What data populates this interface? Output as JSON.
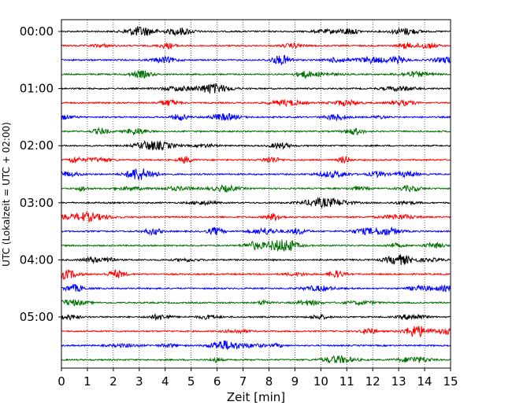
{
  "chart_data": {
    "type": "line",
    "title": "",
    "xlabel": "Zeit  [min]",
    "ylabel": "UTC (Lokalzeit = UTC + 02:00)",
    "xlim": [
      0,
      15
    ],
    "xticks": [
      "0",
      "1",
      "2",
      "3",
      "4",
      "5",
      "6",
      "7",
      "8",
      "9",
      "10",
      "11",
      "12",
      "13",
      "14",
      "15"
    ],
    "yticks": [
      "00:00",
      "01:00",
      "02:00",
      "03:00",
      "04:00",
      "05:00"
    ],
    "grid_x": true,
    "traces_per_hour": 4,
    "trace_colors": [
      "#000000",
      "#ff0000",
      "#0000ff",
      "#007000"
    ],
    "trace_count": 24,
    "series_description": "Seismogram helicorder: 24 traces of 15 minutes each, starting at 00:00 UTC, colors cycling black/red/blue/green"
  }
}
